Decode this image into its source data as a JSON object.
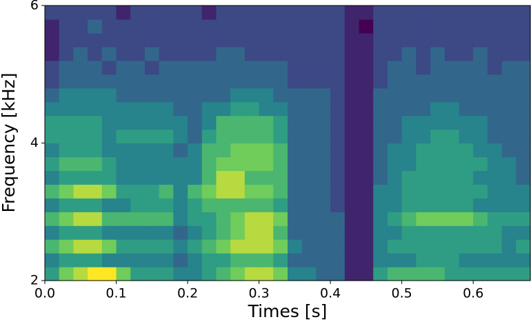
{
  "chart_data": {
    "type": "heatmap",
    "xlabel": "Times [s]",
    "ylabel": "Frequency [kHz]",
    "xlim": [
      0,
      0.68
    ],
    "ylim": [
      2,
      6
    ],
    "xticks": [
      {
        "value": 0,
        "label": "0.0"
      },
      0.1,
      0.2,
      0.3,
      0.4,
      0.5,
      0.6
    ],
    "yticks": [
      2,
      4,
      6
    ],
    "zlim": [
      0,
      9
    ],
    "colormap": [
      "#440154",
      "#3b528b",
      "#21918c",
      "#5ec962",
      "#fde725"
    ],
    "z": [
      [
        5,
        7,
        8,
        9,
        9,
        7,
        5,
        5,
        5,
        4,
        4,
        5,
        6,
        7,
        8,
        8,
        7,
        4,
        4,
        3,
        3,
        1,
        1,
        5,
        6,
        6,
        6,
        6,
        5,
        5,
        5,
        5,
        5,
        5
      ],
      [
        4,
        5,
        5,
        5,
        4,
        4,
        4,
        4,
        4,
        3,
        4,
        5,
        5,
        6,
        6,
        6,
        5,
        3,
        3,
        3,
        3,
        1,
        1,
        4,
        4,
        4,
        5,
        5,
        5,
        4,
        4,
        4,
        4,
        4
      ],
      [
        6,
        7,
        8,
        8,
        7,
        5,
        5,
        5,
        5,
        4,
        5,
        6,
        7,
        8,
        8,
        8,
        7,
        4,
        3,
        3,
        3,
        1,
        1,
        4,
        5,
        5,
        5,
        5,
        5,
        5,
        5,
        5,
        4,
        5
      ],
      [
        4,
        5,
        5,
        5,
        4,
        4,
        4,
        4,
        4,
        3,
        4,
        5,
        6,
        7,
        8,
        8,
        6,
        3,
        3,
        3,
        3,
        1,
        1,
        4,
        4,
        5,
        5,
        5,
        5,
        5,
        5,
        5,
        4,
        4
      ],
      [
        6,
        7,
        8,
        8,
        6,
        6,
        6,
        6,
        6,
        4,
        5,
        5,
        6,
        7,
        8,
        8,
        7,
        3,
        3,
        3,
        3,
        1,
        1,
        4,
        5,
        6,
        7,
        7,
        7,
        7,
        6,
        5,
        5,
        5
      ],
      [
        4,
        5,
        5,
        5,
        4,
        4,
        5,
        5,
        5,
        4,
        5,
        6,
        6,
        6,
        6,
        6,
        5,
        3,
        3,
        3,
        2,
        1,
        1,
        4,
        4,
        5,
        5,
        5,
        5,
        5,
        4,
        4,
        4,
        4
      ],
      [
        6,
        7,
        8,
        8,
        7,
        5,
        5,
        5,
        6,
        4,
        6,
        7,
        8,
        8,
        7,
        7,
        6,
        3,
        3,
        3,
        2,
        1,
        1,
        4,
        4,
        5,
        5,
        5,
        5,
        5,
        5,
        4,
        4,
        4
      ],
      [
        4,
        5,
        5,
        5,
        5,
        4,
        4,
        4,
        4,
        4,
        4,
        6,
        8,
        8,
        6,
        6,
        6,
        3,
        3,
        3,
        2,
        1,
        1,
        3,
        4,
        5,
        5,
        5,
        5,
        5,
        4,
        4,
        4,
        3
      ],
      [
        5,
        6,
        6,
        6,
        5,
        4,
        4,
        4,
        4,
        4,
        4,
        6,
        7,
        7,
        7,
        7,
        6,
        3,
        3,
        3,
        2,
        1,
        1,
        3,
        4,
        4,
        5,
        5,
        5,
        5,
        5,
        4,
        4,
        3
      ],
      [
        4,
        5,
        5,
        5,
        4,
        4,
        4,
        4,
        4,
        3,
        4,
        6,
        6,
        7,
        7,
        7,
        6,
        3,
        3,
        3,
        2,
        1,
        1,
        3,
        4,
        4,
        5,
        5,
        5,
        5,
        4,
        4,
        3,
        3
      ],
      [
        5,
        5,
        5,
        5,
        4,
        5,
        5,
        5,
        5,
        4,
        3,
        5,
        6,
        6,
        6,
        6,
        5,
        3,
        3,
        3,
        2,
        1,
        1,
        3,
        3,
        4,
        4,
        5,
        5,
        4,
        4,
        3,
        3,
        3
      ],
      [
        5,
        5,
        5,
        5,
        4,
        4,
        4,
        4,
        4,
        4,
        3,
        4,
        6,
        6,
        6,
        6,
        5,
        3,
        3,
        3,
        2,
        1,
        1,
        3,
        3,
        4,
        4,
        4,
        4,
        4,
        4,
        3,
        3,
        3
      ],
      [
        4,
        4,
        4,
        4,
        4,
        4,
        4,
        4,
        4,
        3,
        3,
        4,
        4,
        5,
        5,
        4,
        4,
        3,
        3,
        3,
        2,
        1,
        1,
        3,
        3,
        3,
        3,
        4,
        4,
        3,
        3,
        3,
        3,
        3
      ],
      [
        3,
        4,
        4,
        4,
        4,
        3,
        3,
        3,
        3,
        3,
        3,
        3,
        3,
        4,
        4,
        4,
        3,
        3,
        3,
        3,
        2,
        1,
        1,
        3,
        3,
        3,
        3,
        3,
        3,
        3,
        3,
        3,
        3,
        3
      ],
      [
        2,
        3,
        3,
        3,
        3,
        3,
        3,
        3,
        3,
        3,
        3,
        3,
        3,
        3,
        3,
        3,
        3,
        2,
        2,
        2,
        2,
        1,
        1,
        2,
        3,
        3,
        3,
        3,
        3,
        3,
        3,
        3,
        3,
        3
      ],
      [
        2,
        3,
        3,
        3,
        2,
        3,
        3,
        2,
        3,
        3,
        3,
        3,
        3,
        3,
        3,
        3,
        3,
        2,
        2,
        2,
        2,
        1,
        1,
        2,
        3,
        3,
        2,
        3,
        3,
        3,
        3,
        2,
        3,
        3
      ],
      [
        1,
        2,
        3,
        2,
        3,
        2,
        2,
        3,
        2,
        2,
        2,
        2,
        3,
        3,
        2,
        2,
        2,
        2,
        2,
        2,
        2,
        1,
        1,
        2,
        2,
        3,
        2,
        3,
        2,
        2,
        3,
        2,
        2,
        2
      ],
      [
        1,
        2,
        2,
        2,
        2,
        2,
        2,
        2,
        2,
        2,
        2,
        2,
        2,
        2,
        2,
        2,
        2,
        2,
        2,
        2,
        2,
        1,
        1,
        2,
        2,
        2,
        2,
        2,
        2,
        2,
        2,
        2,
        2,
        2
      ],
      [
        1,
        2,
        2,
        3,
        2,
        2,
        2,
        2,
        2,
        2,
        2,
        2,
        2,
        2,
        2,
        2,
        2,
        2,
        2,
        2,
        2,
        1,
        0,
        2,
        2,
        2,
        2,
        2,
        2,
        2,
        2,
        2,
        2,
        2
      ],
      [
        2,
        2,
        2,
        2,
        2,
        1,
        2,
        2,
        2,
        2,
        2,
        1,
        2,
        2,
        2,
        2,
        2,
        2,
        2,
        2,
        2,
        1,
        1,
        2,
        2,
        2,
        2,
        2,
        2,
        2,
        2,
        2,
        2,
        2
      ]
    ]
  }
}
